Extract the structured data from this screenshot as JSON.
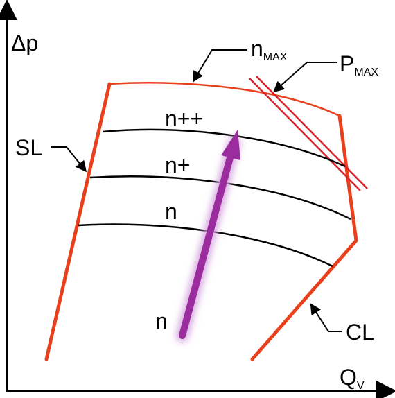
{
  "axes": {
    "y_label": "Δp",
    "x_label_main": "Q",
    "x_label_sub": "V"
  },
  "curves": {
    "n_max_label_main": "n",
    "n_max_label_sub": "MAX",
    "p_max_label_main": "P",
    "p_max_label_sub": "MAX",
    "surge_line_label": "SL",
    "choke_line_label": "CL",
    "speed_line_labels": [
      "n++",
      "n+",
      "n"
    ],
    "arrow_start_label": "n"
  },
  "colors": {
    "line_red": "#e8401c",
    "pmax_red": "#d81f2a",
    "speed_line": "#000000",
    "arrow_purple": "#9b2c9e",
    "arrow_glow": "#d7a6e0"
  }
}
